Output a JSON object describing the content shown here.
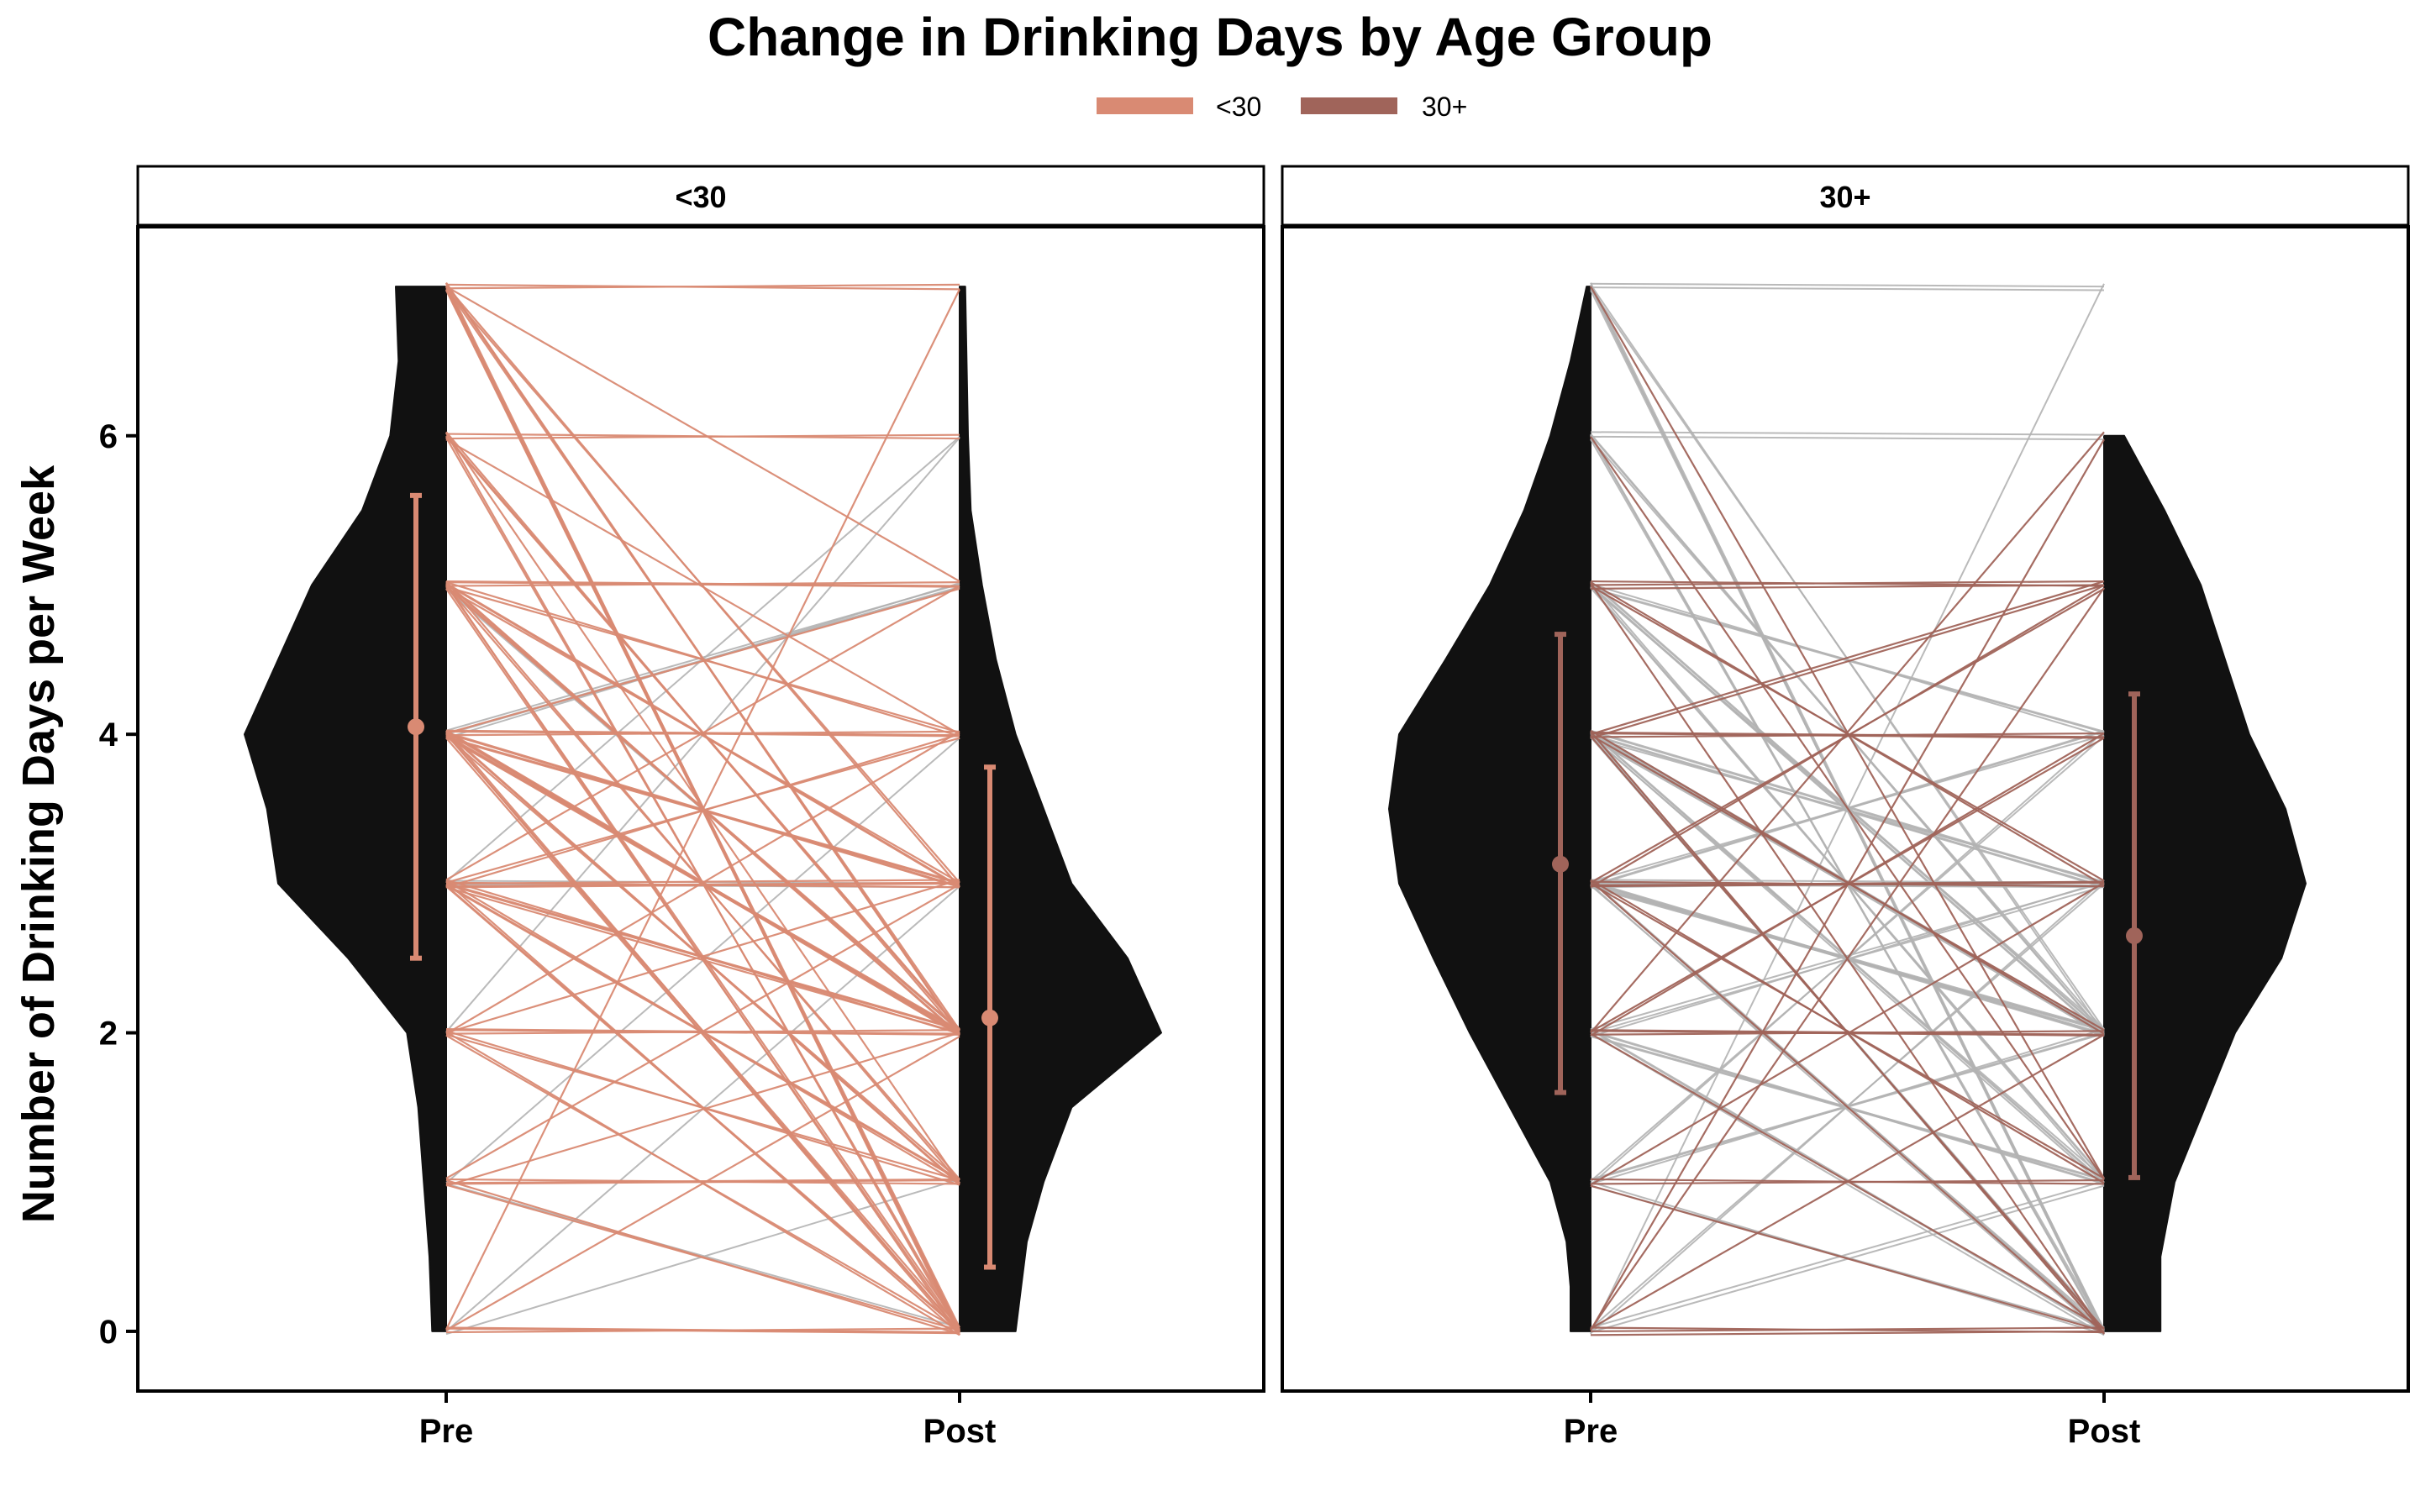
{
  "chart_data": {
    "type": "line",
    "title": "Change in Drinking Days by Age Group",
    "ylabel": "Number of Drinking Days per Week",
    "xlabel": "",
    "ylim": [
      -0.4,
      7.4
    ],
    "yticks": [
      0,
      2,
      4,
      6
    ],
    "x_categories": [
      "Pre",
      "Post"
    ],
    "grid": false,
    "legend": {
      "placement": "top",
      "entries": [
        {
          "label": "<30",
          "color": "#D98A73"
        },
        {
          "label": "30+",
          "color": "#A0645A"
        }
      ]
    },
    "panels": [
      {
        "strip": "<30",
        "color": "#D98A73",
        "summary": {
          "Pre": {
            "mean": 4.05,
            "low": 2.5,
            "high": 5.6
          },
          "Post": {
            "mean": 2.1,
            "low": 0.43,
            "high": 3.78
          }
        },
        "density_pre": [
          [
            0,
            0.05
          ],
          [
            0.5,
            0.06
          ],
          [
            1,
            0.08
          ],
          [
            1.5,
            0.1
          ],
          [
            2,
            0.14
          ],
          [
            2.5,
            0.35
          ],
          [
            3,
            0.6
          ],
          [
            3.5,
            0.64
          ],
          [
            4,
            0.72
          ],
          [
            4.5,
            0.6
          ],
          [
            5,
            0.48
          ],
          [
            5.5,
            0.3
          ],
          [
            6,
            0.2
          ],
          [
            6.5,
            0.17
          ],
          [
            7,
            0.18
          ]
        ],
        "density_post": [
          [
            0,
            0.2
          ],
          [
            0.3,
            0.22
          ],
          [
            0.6,
            0.24
          ],
          [
            1,
            0.3
          ],
          [
            1.5,
            0.4
          ],
          [
            2,
            0.72
          ],
          [
            2.5,
            0.6
          ],
          [
            3,
            0.4
          ],
          [
            3.5,
            0.3
          ],
          [
            4,
            0.2
          ],
          [
            4.5,
            0.13
          ],
          [
            5,
            0.08
          ],
          [
            5.5,
            0.04
          ],
          [
            6,
            0.03
          ],
          [
            7,
            0.02
          ]
        ],
        "segments": [
          {
            "pre": 7,
            "post": 0,
            "count": 5
          },
          {
            "pre": 7,
            "post": 2,
            "count": 3
          },
          {
            "pre": 7,
            "post": 7,
            "count": 2
          },
          {
            "pre": 7,
            "post": 3,
            "count": 2
          },
          {
            "pre": 7,
            "post": 5,
            "count": 1
          },
          {
            "pre": 6,
            "post": 2,
            "count": 3
          },
          {
            "pre": 6,
            "post": 0,
            "count": 2
          },
          {
            "pre": 6,
            "post": 6,
            "count": 2
          },
          {
            "pre": 6,
            "post": 4,
            "count": 1
          },
          {
            "pre": 6,
            "post": 1,
            "count": 1
          },
          {
            "pre": 5,
            "post": 5,
            "count": 3
          },
          {
            "pre": 5,
            "post": 2,
            "count": 4
          },
          {
            "pre": 5,
            "post": 3,
            "count": 3
          },
          {
            "pre": 5,
            "post": 0,
            "count": 3
          },
          {
            "pre": 5,
            "post": 1,
            "count": 2
          },
          {
            "pre": 5,
            "post": 4,
            "count": 2
          },
          {
            "pre": 4,
            "post": 2,
            "count": 6
          },
          {
            "pre": 4,
            "post": 3,
            "count": 4
          },
          {
            "pre": 4,
            "post": 0,
            "count": 4
          },
          {
            "pre": 4,
            "post": 4,
            "count": 3
          },
          {
            "pre": 4,
            "post": 1,
            "count": 3
          },
          {
            "pre": 4,
            "post": 5,
            "count": 1
          },
          {
            "pre": 3,
            "post": 3,
            "count": 4
          },
          {
            "pre": 3,
            "post": 2,
            "count": 4
          },
          {
            "pre": 3,
            "post": 1,
            "count": 3
          },
          {
            "pre": 3,
            "post": 0,
            "count": 3
          },
          {
            "pre": 3,
            "post": 4,
            "count": 2
          },
          {
            "pre": 3,
            "post": 5,
            "count": 1
          },
          {
            "pre": 2,
            "post": 2,
            "count": 3
          },
          {
            "pre": 2,
            "post": 1,
            "count": 2
          },
          {
            "pre": 2,
            "post": 0,
            "count": 2
          },
          {
            "pre": 2,
            "post": 3,
            "count": 1
          },
          {
            "pre": 2,
            "post": 4,
            "count": 1
          },
          {
            "pre": 1,
            "post": 1,
            "count": 3
          },
          {
            "pre": 1,
            "post": 0,
            "count": 2
          },
          {
            "pre": 1,
            "post": 2,
            "count": 1
          },
          {
            "pre": 1,
            "post": 3,
            "count": 1
          },
          {
            "pre": 0,
            "post": 0,
            "count": 3
          },
          {
            "pre": 0,
            "post": 7,
            "count": 1
          },
          {
            "pre": 0,
            "post": 2,
            "count": 1
          }
        ],
        "grey_segments": [
          {
            "pre": 4,
            "post": 5,
            "count": 4
          },
          {
            "pre": 3,
            "post": 3,
            "count": 2
          },
          {
            "pre": 3,
            "post": 6,
            "count": 1
          },
          {
            "pre": 2,
            "post": 6,
            "count": 1
          },
          {
            "pre": 0,
            "post": 3,
            "count": 1
          },
          {
            "pre": 1,
            "post": 4,
            "count": 1
          },
          {
            "pre": 1,
            "post": 0,
            "count": 1
          },
          {
            "pre": 0,
            "post": 1,
            "count": 1
          },
          {
            "pre": 5,
            "post": 2,
            "count": 1
          }
        ]
      },
      {
        "strip": "30+",
        "color": "#A0645A",
        "summary": {
          "Pre": {
            "mean": 3.13,
            "low": 1.6,
            "high": 4.67
          },
          "Post": {
            "mean": 2.65,
            "low": 1.03,
            "high": 4.27
          }
        },
        "density_pre": [
          [
            0,
            0.1
          ],
          [
            0.3,
            0.1
          ],
          [
            0.6,
            0.12
          ],
          [
            1,
            0.2
          ],
          [
            1.5,
            0.4
          ],
          [
            2,
            0.6
          ],
          [
            2.5,
            0.78
          ],
          [
            3,
            0.95
          ],
          [
            3.5,
            1.0
          ],
          [
            4,
            0.95
          ],
          [
            4.5,
            0.72
          ],
          [
            5,
            0.5
          ],
          [
            5.5,
            0.33
          ],
          [
            6,
            0.2
          ],
          [
            6.5,
            0.1
          ],
          [
            7,
            0.02
          ]
        ],
        "density_post": [
          [
            0,
            0.28
          ],
          [
            0.5,
            0.28
          ],
          [
            1,
            0.35
          ],
          [
            1.5,
            0.5
          ],
          [
            2,
            0.65
          ],
          [
            2.5,
            0.88
          ],
          [
            3,
            1.0
          ],
          [
            3.5,
            0.9
          ],
          [
            4,
            0.72
          ],
          [
            4.5,
            0.6
          ],
          [
            5,
            0.48
          ],
          [
            5.5,
            0.3
          ],
          [
            6,
            0.1
          ]
        ],
        "segments": [
          {
            "pre": 5,
            "post": 5,
            "count": 3
          },
          {
            "pre": 5,
            "post": 3,
            "count": 2
          },
          {
            "pre": 5,
            "post": 0,
            "count": 1
          },
          {
            "pre": 4,
            "post": 4,
            "count": 3
          },
          {
            "pre": 4,
            "post": 5,
            "count": 2
          },
          {
            "pre": 4,
            "post": 2,
            "count": 2
          },
          {
            "pre": 4,
            "post": 0,
            "count": 2
          },
          {
            "pre": 3,
            "post": 3,
            "count": 3
          },
          {
            "pre": 3,
            "post": 5,
            "count": 2
          },
          {
            "pre": 3,
            "post": 1,
            "count": 2
          },
          {
            "pre": 3,
            "post": 0,
            "count": 1
          },
          {
            "pre": 2,
            "post": 2,
            "count": 3
          },
          {
            "pre": 2,
            "post": 4,
            "count": 2
          },
          {
            "pre": 2,
            "post": 6,
            "count": 1
          },
          {
            "pre": 2,
            "post": 0,
            "count": 1
          },
          {
            "pre": 1,
            "post": 1,
            "count": 2
          },
          {
            "pre": 1,
            "post": 3,
            "count": 1
          },
          {
            "pre": 1,
            "post": 0,
            "count": 1
          },
          {
            "pre": 0,
            "post": 0,
            "count": 3
          },
          {
            "pre": 0,
            "post": 2,
            "count": 1
          },
          {
            "pre": 0,
            "post": 5,
            "count": 1
          },
          {
            "pre": 0,
            "post": 6,
            "count": 1
          },
          {
            "pre": 7,
            "post": 1,
            "count": 1
          },
          {
            "pre": 6,
            "post": 1,
            "count": 1
          }
        ],
        "grey_segments": [
          {
            "pre": 7,
            "post": 0,
            "count": 4
          },
          {
            "pre": 7,
            "post": 7,
            "count": 2
          },
          {
            "pre": 7,
            "post": 2,
            "count": 2
          },
          {
            "pre": 6,
            "post": 2,
            "count": 3
          },
          {
            "pre": 6,
            "post": 0,
            "count": 3
          },
          {
            "pre": 6,
            "post": 6,
            "count": 2
          },
          {
            "pre": 5,
            "post": 2,
            "count": 5
          },
          {
            "pre": 5,
            "post": 1,
            "count": 3
          },
          {
            "pre": 5,
            "post": 4,
            "count": 3
          },
          {
            "pre": 4,
            "post": 2,
            "count": 6
          },
          {
            "pre": 4,
            "post": 3,
            "count": 5
          },
          {
            "pre": 4,
            "post": 1,
            "count": 4
          },
          {
            "pre": 4,
            "post": 0,
            "count": 4
          },
          {
            "pre": 3,
            "post": 2,
            "count": 6
          },
          {
            "pre": 3,
            "post": 3,
            "count": 5
          },
          {
            "pre": 3,
            "post": 0,
            "count": 4
          },
          {
            "pre": 3,
            "post": 4,
            "count": 3
          },
          {
            "pre": 2,
            "post": 1,
            "count": 4
          },
          {
            "pre": 2,
            "post": 3,
            "count": 3
          },
          {
            "pre": 2,
            "post": 0,
            "count": 3
          },
          {
            "pre": 1,
            "post": 2,
            "count": 3
          },
          {
            "pre": 1,
            "post": 4,
            "count": 2
          },
          {
            "pre": 1,
            "post": 0,
            "count": 2
          },
          {
            "pre": 0,
            "post": 1,
            "count": 2
          },
          {
            "pre": 0,
            "post": 3,
            "count": 2
          },
          {
            "pre": 0,
            "post": 7,
            "count": 1
          }
        ]
      }
    ]
  }
}
